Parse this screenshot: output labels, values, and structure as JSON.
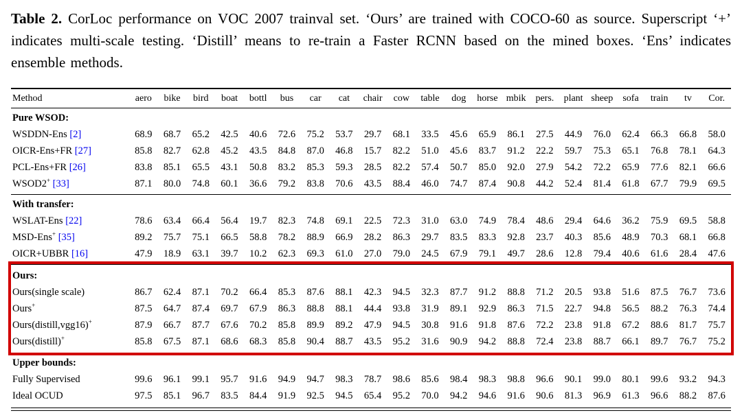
{
  "colors": {
    "citation": "#0000EE",
    "highlight_box": "#D10000",
    "text": "#000000",
    "background": "#FFFFFF"
  },
  "caption": {
    "label": "Table 2.",
    "body": "CorLoc performance on VOC 2007 trainval set. ‘Ours’ are trained with COCO-60 as source. Superscript ‘+’ indicates multi-scale testing. ‘Distill’ means to re-train a Faster RCNN based on the mined boxes. ‘Ens’ indicates ensemble methods."
  },
  "table": {
    "columns": [
      "Method",
      "aero",
      "bike",
      "bird",
      "boat",
      "bottl",
      "bus",
      "car",
      "cat",
      "chair",
      "cow",
      "table",
      "dog",
      "horse",
      "mbik",
      "pers.",
      "plant",
      "sheep",
      "sofa",
      "train",
      "tv",
      "Cor."
    ],
    "sections": [
      {
        "title": "Pure WSOD:",
        "highlighted": false,
        "rows": [
          {
            "method": "WSDDN-Ens",
            "sup": "",
            "cite": "[2]",
            "values": [
              "68.9",
              "68.7",
              "65.2",
              "42.5",
              "40.6",
              "72.6",
              "75.2",
              "53.7",
              "29.7",
              "68.1",
              "33.5",
              "45.6",
              "65.9",
              "86.1",
              "27.5",
              "44.9",
              "76.0",
              "62.4",
              "66.3",
              "66.8",
              "58.0"
            ]
          },
          {
            "method": "OICR-Ens+FR",
            "sup": "",
            "cite": "[27]",
            "values": [
              "85.8",
              "82.7",
              "62.8",
              "45.2",
              "43.5",
              "84.8",
              "87.0",
              "46.8",
              "15.7",
              "82.2",
              "51.0",
              "45.6",
              "83.7",
              "91.2",
              "22.2",
              "59.7",
              "75.3",
              "65.1",
              "76.8",
              "78.1",
              "64.3"
            ]
          },
          {
            "method": "PCL-Ens+FR",
            "sup": "",
            "cite": "[26]",
            "values": [
              "83.8",
              "85.1",
              "65.5",
              "43.1",
              "50.8",
              "83.2",
              "85.3",
              "59.3",
              "28.5",
              "82.2",
              "57.4",
              "50.7",
              "85.0",
              "92.0",
              "27.9",
              "54.2",
              "72.2",
              "65.9",
              "77.6",
              "82.1",
              "66.6"
            ]
          },
          {
            "method": "WSOD2",
            "sup": "+",
            "cite": "[33]",
            "values": [
              "87.1",
              "80.0",
              "74.8",
              "60.1",
              "36.6",
              "79.2",
              "83.8",
              "70.6",
              "43.5",
              "88.4",
              "46.0",
              "74.7",
              "87.4",
              "90.8",
              "44.2",
              "52.4",
              "81.4",
              "61.8",
              "67.7",
              "79.9",
              "69.5"
            ]
          }
        ]
      },
      {
        "title": "With transfer:",
        "highlighted": false,
        "rows": [
          {
            "method": "WSLAT-Ens",
            "sup": "",
            "cite": "[22]",
            "values": [
              "78.6",
              "63.4",
              "66.4",
              "56.4",
              "19.7",
              "82.3",
              "74.8",
              "69.1",
              "22.5",
              "72.3",
              "31.0",
              "63.0",
              "74.9",
              "78.4",
              "48.6",
              "29.4",
              "64.6",
              "36.2",
              "75.9",
              "69.5",
              "58.8"
            ]
          },
          {
            "method": "MSD-Ens",
            "sup": "+",
            "cite": "[35]",
            "values": [
              "89.2",
              "75.7",
              "75.1",
              "66.5",
              "58.8",
              "78.2",
              "88.9",
              "66.9",
              "28.2",
              "86.3",
              "29.7",
              "83.5",
              "83.3",
              "92.8",
              "23.7",
              "40.3",
              "85.6",
              "48.9",
              "70.3",
              "68.1",
              "66.8"
            ]
          },
          {
            "method": "OICR+UBBR",
            "sup": "",
            "cite": "[16]",
            "values": [
              "47.9",
              "18.9",
              "63.1",
              "39.7",
              "10.2",
              "62.3",
              "69.3",
              "61.0",
              "27.0",
              "79.0",
              "24.5",
              "67.9",
              "79.1",
              "49.7",
              "28.6",
              "12.8",
              "79.4",
              "40.6",
              "61.6",
              "28.4",
              "47.6"
            ]
          }
        ]
      },
      {
        "title": "Ours:",
        "highlighted": true,
        "rows": [
          {
            "method": "Ours(single scale)",
            "sup": "",
            "cite": "",
            "values": [
              "86.7",
              "62.4",
              "87.1",
              "70.2",
              "66.4",
              "85.3",
              "87.6",
              "88.1",
              "42.3",
              "94.5",
              "32.3",
              "87.7",
              "91.2",
              "88.8",
              "71.2",
              "20.5",
              "93.8",
              "51.6",
              "87.5",
              "76.7",
              "73.6"
            ]
          },
          {
            "method": "Ours",
            "sup": "+",
            "cite": "",
            "values": [
              "87.5",
              "64.7",
              "87.4",
              "69.7",
              "67.9",
              "86.3",
              "88.8",
              "88.1",
              "44.4",
              "93.8",
              "31.9",
              "89.1",
              "92.9",
              "86.3",
              "71.5",
              "22.7",
              "94.8",
              "56.5",
              "88.2",
              "76.3",
              "74.4"
            ]
          },
          {
            "method": "Ours(distill,vgg16)",
            "sup": "+",
            "cite": "",
            "values": [
              "87.9",
              "66.7",
              "87.7",
              "67.6",
              "70.2",
              "85.8",
              "89.9",
              "89.2",
              "47.9",
              "94.5",
              "30.8",
              "91.6",
              "91.8",
              "87.6",
              "72.2",
              "23.8",
              "91.8",
              "67.2",
              "88.6",
              "81.7",
              "75.7"
            ]
          },
          {
            "method": "Ours(distill)",
            "sup": "+",
            "cite": "",
            "values": [
              "85.8",
              "67.5",
              "87.1",
              "68.6",
              "68.3",
              "85.8",
              "90.4",
              "88.7",
              "43.5",
              "95.2",
              "31.6",
              "90.9",
              "94.2",
              "88.8",
              "72.4",
              "23.8",
              "88.7",
              "66.1",
              "89.7",
              "76.7",
              "75.2"
            ]
          }
        ]
      },
      {
        "title": "Upper bounds:",
        "highlighted": false,
        "rows": [
          {
            "method": "Fully Supervised",
            "sup": "",
            "cite": "",
            "values": [
              "99.6",
              "96.1",
              "99.1",
              "95.7",
              "91.6",
              "94.9",
              "94.7",
              "98.3",
              "78.7",
              "98.6",
              "85.6",
              "98.4",
              "98.3",
              "98.8",
              "96.6",
              "90.1",
              "99.0",
              "80.1",
              "99.6",
              "93.2",
              "94.3"
            ]
          },
          {
            "method": "Ideal OCUD",
            "sup": "",
            "cite": "",
            "values": [
              "97.5",
              "85.1",
              "96.7",
              "83.5",
              "84.4",
              "91.9",
              "92.5",
              "94.5",
              "65.4",
              "95.2",
              "70.0",
              "94.2",
              "94.6",
              "91.6",
              "90.6",
              "81.3",
              "96.9",
              "61.3",
              "96.6",
              "88.2",
              "87.6"
            ]
          }
        ]
      }
    ]
  }
}
